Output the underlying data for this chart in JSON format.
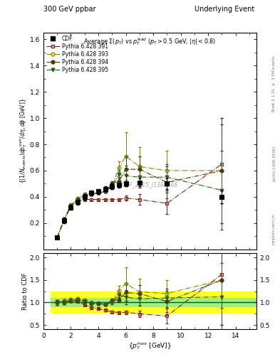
{
  "title_left": "300 GeV ppbar",
  "title_right": "Underlying Event",
  "plot_title": "Average $\\Sigma(p_T)$ vs $p_T^{lead}$ ($p_T > 0.5$ GeV, $|\\eta| < 0.8$)",
  "ylabel_main": "$\\{(1/N_{events}) dp_T^{sum}/d\\eta, d\\phi$ [GeV]$\\}$",
  "ylabel_ratio": "Ratio to CDF",
  "xlabel": "$\\{p_T^{max}$ [GeV]$\\}$",
  "watermark": "CDF_2015_I1388868",
  "right_label1": "Rivet 3.1.10, $\\geq$ 3.3M events",
  "right_label2": "[arXiv:1306.3436]",
  "right_label3": "mcplots.cern.ch",
  "cdf_x": [
    1.0,
    1.5,
    2.0,
    2.5,
    3.0,
    3.5,
    4.0,
    4.5,
    5.0,
    5.5,
    6.0,
    7.0,
    9.0,
    13.0
  ],
  "cdf_y": [
    0.09,
    0.22,
    0.32,
    0.36,
    0.4,
    0.43,
    0.44,
    0.46,
    0.48,
    0.49,
    0.5,
    0.51,
    0.5,
    0.4
  ],
  "cdf_yerr": [
    0.01,
    0.02,
    0.02,
    0.02,
    0.02,
    0.02,
    0.02,
    0.02,
    0.02,
    0.02,
    0.02,
    0.03,
    0.04,
    0.05
  ],
  "py391_x": [
    1.0,
    1.5,
    2.0,
    2.5,
    3.0,
    3.5,
    4.0,
    4.5,
    5.0,
    5.5,
    6.0,
    7.0,
    9.0,
    13.0
  ],
  "py391_y": [
    0.09,
    0.22,
    0.33,
    0.37,
    0.38,
    0.38,
    0.38,
    0.38,
    0.38,
    0.38,
    0.39,
    0.38,
    0.35,
    0.65
  ],
  "py391_yerr": [
    0.005,
    0.01,
    0.01,
    0.01,
    0.01,
    0.01,
    0.01,
    0.01,
    0.01,
    0.01,
    0.02,
    0.04,
    0.08,
    0.3
  ],
  "py393_x": [
    1.0,
    1.5,
    2.0,
    2.5,
    3.0,
    3.5,
    4.0,
    4.5,
    5.0,
    5.5,
    6.0,
    7.0,
    9.0,
    13.0
  ],
  "py393_y": [
    0.09,
    0.23,
    0.34,
    0.39,
    0.42,
    0.43,
    0.43,
    0.44,
    0.48,
    0.62,
    0.71,
    0.63,
    0.6,
    0.6
  ],
  "py393_yerr": [
    0.005,
    0.01,
    0.01,
    0.01,
    0.01,
    0.01,
    0.01,
    0.01,
    0.02,
    0.05,
    0.18,
    0.15,
    0.15,
    0.4
  ],
  "py394_x": [
    1.0,
    1.5,
    2.0,
    2.5,
    3.0,
    3.5,
    4.0,
    4.5,
    5.0,
    5.5,
    6.0,
    7.0,
    9.0,
    13.0
  ],
  "py394_y": [
    0.09,
    0.22,
    0.33,
    0.38,
    0.41,
    0.42,
    0.43,
    0.44,
    0.5,
    0.52,
    0.61,
    0.61,
    0.51,
    0.6
  ],
  "py394_yerr": [
    0.005,
    0.01,
    0.01,
    0.01,
    0.01,
    0.01,
    0.01,
    0.01,
    0.02,
    0.03,
    0.1,
    0.1,
    0.12,
    0.4
  ],
  "py395_x": [
    1.0,
    1.5,
    2.0,
    2.5,
    3.0,
    3.5,
    4.0,
    4.5,
    5.0,
    5.5,
    6.0,
    7.0,
    9.0,
    13.0
  ],
  "py395_y": [
    0.09,
    0.22,
    0.33,
    0.38,
    0.41,
    0.42,
    0.43,
    0.44,
    0.48,
    0.57,
    0.56,
    0.55,
    0.55,
    0.45
  ],
  "py395_yerr": [
    0.005,
    0.01,
    0.01,
    0.01,
    0.01,
    0.01,
    0.01,
    0.01,
    0.02,
    0.03,
    0.08,
    0.08,
    0.1,
    0.3
  ],
  "color_cdf": "#000000",
  "color_391": "#8B1A1A",
  "color_393": "#8B8000",
  "color_394": "#4B3B00",
  "color_395": "#2D5A1B",
  "band_green_inner": 0.1,
  "band_yellow_outer": 0.25,
  "ylim_main": [
    0.0,
    1.65
  ],
  "ylim_ratio": [
    0.4,
    2.1
  ],
  "xlim": [
    0.0,
    15.5
  ],
  "yticks_main": [
    0.2,
    0.4,
    0.6,
    0.8,
    1.0,
    1.2,
    1.4,
    1.6
  ],
  "yticks_ratio": [
    0.5,
    1.0,
    1.5,
    2.0
  ]
}
